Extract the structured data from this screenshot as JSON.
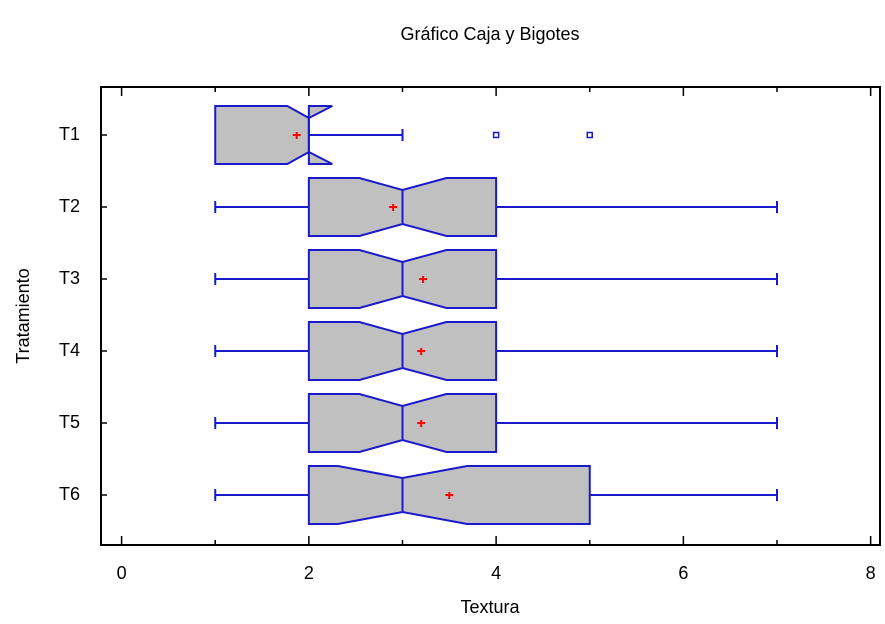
{
  "chart_data": {
    "type": "box",
    "title": "Gráfico Caja y Bigotes",
    "x_label": "Textura",
    "y_label": "Tratamiento",
    "categories": [
      "T1",
      "T2",
      "T3",
      "T4",
      "T5",
      "T6"
    ],
    "boxes": [
      {
        "whisker_low": 1,
        "q1": 1,
        "median": 2,
        "q3": 2,
        "whisker_high": 3,
        "notch_low": 1.77,
        "notch_high": 2.25,
        "mean": 1.87,
        "outliers": [
          4,
          5
        ]
      },
      {
        "whisker_low": 1,
        "q1": 2,
        "median": 3,
        "q3": 4,
        "whisker_high": 7,
        "notch_low": 2.54,
        "notch_high": 3.47,
        "mean": 2.9,
        "outliers": []
      },
      {
        "whisker_low": 1,
        "q1": 2,
        "median": 3,
        "q3": 4,
        "whisker_high": 7,
        "notch_low": 2.54,
        "notch_high": 3.47,
        "mean": 3.22,
        "outliers": []
      },
      {
        "whisker_low": 1,
        "q1": 2,
        "median": 3,
        "q3": 4,
        "whisker_high": 7,
        "notch_low": 2.54,
        "notch_high": 3.47,
        "mean": 3.2,
        "outliers": []
      },
      {
        "whisker_low": 1,
        "q1": 2,
        "median": 3,
        "q3": 4,
        "whisker_high": 7,
        "notch_low": 2.54,
        "notch_high": 3.47,
        "mean": 3.2,
        "outliers": []
      },
      {
        "whisker_low": 1,
        "q1": 2,
        "median": 3,
        "q3": 5,
        "whisker_high": 7,
        "notch_low": 2.31,
        "notch_high": 3.69,
        "mean": 3.5,
        "outliers": []
      }
    ],
    "box_color": "#c0c0c0",
    "line_color": "#1a1acc",
    "mean_color": "#ff0000",
    "xlim": [
      -0.22,
      8.1
    ],
    "xticks": [
      0,
      2,
      4,
      6,
      8
    ],
    "xminorticks": [
      1,
      3,
      5,
      7
    ]
  }
}
